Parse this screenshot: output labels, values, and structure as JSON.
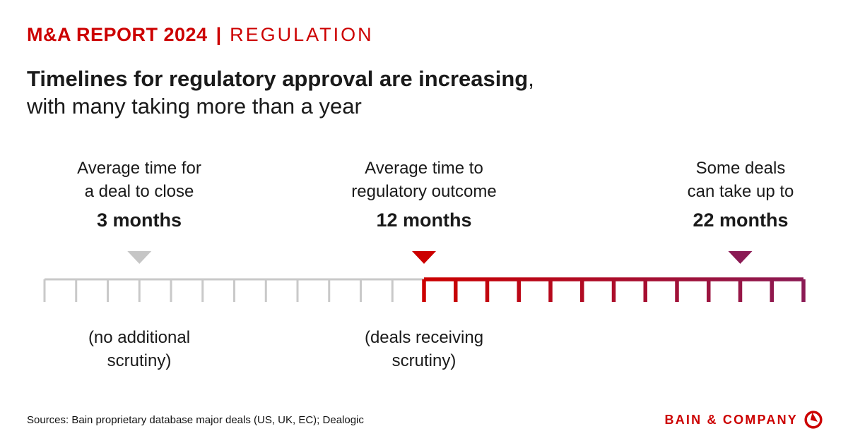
{
  "header": {
    "report_title": "M&A REPORT 2024",
    "separator": "|",
    "section": "REGULATION"
  },
  "headline": {
    "bold": "Timelines for regulatory approval are increasing",
    "comma": ",",
    "line2": "with many taking more than a year"
  },
  "chart_data": {
    "type": "timeline",
    "unit": "months",
    "axis": {
      "min": 0,
      "max": 24,
      "tick_interval": 1,
      "grid": "off",
      "labels_shown": false
    },
    "segments": [
      {
        "name": "no-additional-scrutiny",
        "label_line1": "(no additional",
        "label_line2": "scrutiny)",
        "from": 0,
        "to": 12,
        "color": "#c9c9c9"
      },
      {
        "name": "deals-receiving-scrutiny",
        "label_line1": "(deals receiving",
        "label_line2": "scrutiny)",
        "from": 12,
        "to": 24,
        "color_start": "#cc0000",
        "color_end": "#8b1a54"
      }
    ],
    "markers": [
      {
        "months": 3,
        "label_line1": "Average time for",
        "label_line2": "a deal to close",
        "value": "3 months",
        "color": "#c6c6c6"
      },
      {
        "months": 12,
        "label_line1": "Average time to",
        "label_line2": "regulatory outcome",
        "value": "12 months",
        "color": "#cc0000"
      },
      {
        "months": 22,
        "label_line1": "Some deals",
        "label_line2": "can take up to",
        "value": "22 months",
        "color": "#8b1a54"
      }
    ]
  },
  "footer": {
    "sources": "Sources: Bain proprietary database major deals (US, UK, EC); Dealogic",
    "logo_text": "BAIN & COMPANY"
  },
  "colors": {
    "accent_red": "#cc0000",
    "plum": "#8b1a54",
    "ruler_gray": "#c9c9c9",
    "text": "#1a1a1a"
  }
}
